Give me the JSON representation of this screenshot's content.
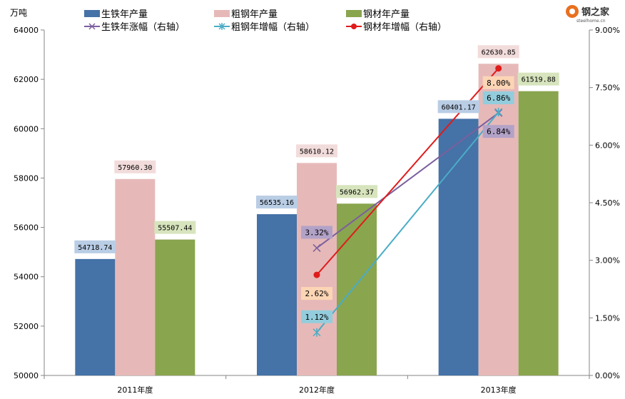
{
  "chart_data": {
    "type": "bar",
    "categories": [
      "2011年度",
      "2012年度",
      "2013年度"
    ],
    "series": [
      {
        "name": "生铁年产量",
        "values": [
          54718.74,
          56535.16,
          60401.17
        ],
        "color": "#4572a7",
        "label_bg": "#b9cde5"
      },
      {
        "name": "粗钢年产量",
        "values": [
          57960.3,
          58610.12,
          62630.85
        ],
        "color": "#e6b9b8",
        "label_bg": "#f2dcdb"
      },
      {
        "name": "钢材年产量",
        "values": [
          55507.44,
          56962.37,
          61519.88
        ],
        "color": "#89a54e",
        "label_bg": "#d7e4bd"
      }
    ],
    "line_series": [
      {
        "name": "生铁年涨幅（右轴）",
        "x": [
          "2012年度",
          "2013年度"
        ],
        "values": [
          3.32,
          6.84
        ],
        "labels": [
          "3.32%",
          "6.84%"
        ],
        "color": "#7b5f9e",
        "label_bg": "#b3a2c7",
        "marker": "x"
      },
      {
        "name": "粗钢年增幅（右轴）",
        "x": [
          "2012年度",
          "2013年度"
        ],
        "values": [
          1.12,
          6.86
        ],
        "labels": [
          "1.12%",
          "6.86%"
        ],
        "color": "#4aacc6",
        "label_bg": "#93cddd",
        "marker": "star"
      },
      {
        "name": "钢材年增幅（右轴）",
        "x": [
          "2012年度",
          "2013年度"
        ],
        "values": [
          2.62,
          8.0
        ],
        "labels": [
          "2.62%",
          "8.00%"
        ],
        "color": "#e01b1b",
        "label_bg": "#fcd5b5",
        "marker": "circle"
      }
    ],
    "bar_labels": [
      [
        "54718.74",
        "56535.16",
        "60401.17"
      ],
      [
        "57960.30",
        "58610.12",
        "62630.85"
      ],
      [
        "55507.44",
        "56962.37",
        "61519.88"
      ]
    ],
    "ylabel": "万吨",
    "ylim": [
      50000,
      64000
    ],
    "yticks": [
      "50000",
      "52000",
      "54000",
      "56000",
      "58000",
      "60000",
      "62000",
      "64000"
    ],
    "y2lim": [
      0,
      9
    ],
    "y2ticks": [
      "0.00%",
      "1.50%",
      "3.00%",
      "4.50%",
      "6.00%",
      "7.50%",
      "9.00%"
    ],
    "grid": false,
    "legend_placement": "top"
  },
  "logo": {
    "main": "钢之家",
    "sub": "steelhome.cn"
  }
}
